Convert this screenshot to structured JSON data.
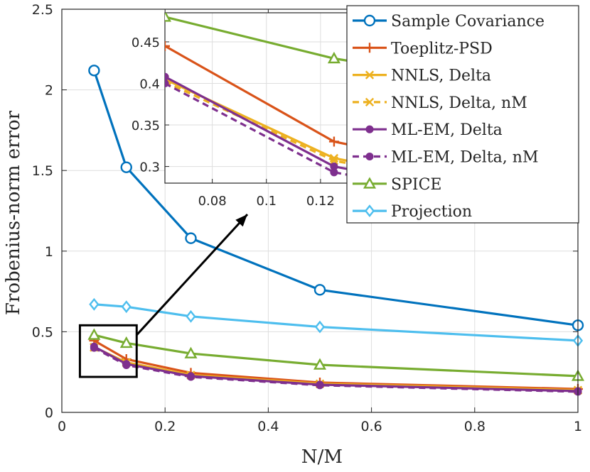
{
  "chart_data": {
    "type": "line",
    "xlabel": "N/M",
    "ylabel": "Frobenius-norm error",
    "xlim": [
      0,
      1
    ],
    "ylim": [
      0,
      2.5
    ],
    "xticks": [
      0,
      0.2,
      0.4,
      0.6,
      0.8,
      1
    ],
    "xtick_labels": [
      "0",
      "0.2",
      "0.4",
      "0.6",
      "0.8",
      "1"
    ],
    "yticks": [
      0,
      0.5,
      1,
      1.5,
      2,
      2.5
    ],
    "ytick_labels": [
      "0",
      "0.5",
      "1",
      "1.5",
      "2",
      "2.5"
    ],
    "grid": true,
    "legend_position": "top-right",
    "x": [
      0.0625,
      0.125,
      0.25,
      0.5,
      1
    ],
    "series": [
      {
        "name": "Sample Covariance",
        "color": "#0072BD",
        "marker": "circle",
        "dash": "solid",
        "values": [
          2.12,
          1.52,
          1.08,
          0.76,
          0.54
        ]
      },
      {
        "name": "Toeplitz-PSD",
        "color": "#D95319",
        "marker": "plus",
        "dash": "solid",
        "values": [
          0.445,
          0.33,
          0.245,
          0.185,
          0.145
        ]
      },
      {
        "name": "NNLS, Delta",
        "color": "#EDB120",
        "marker": "x",
        "dash": "solid",
        "values": [
          0.405,
          0.31,
          0.232,
          0.178,
          0.138
        ]
      },
      {
        "name": "NNLS, Delta, nM",
        "color": "#EDB120",
        "marker": "x",
        "dash": "dashed",
        "values": [
          0.402,
          0.307,
          0.23,
          0.176,
          0.137
        ]
      },
      {
        "name": "ML-EM, Delta",
        "color": "#7E2F8E",
        "marker": "dot",
        "dash": "solid",
        "values": [
          0.408,
          0.3,
          0.225,
          0.172,
          0.132
        ]
      },
      {
        "name": "ML-EM, Delta, nM",
        "color": "#7E2F8E",
        "marker": "dot",
        "dash": "dashed",
        "values": [
          0.4,
          0.293,
          0.22,
          0.168,
          0.128
        ]
      },
      {
        "name": "SPICE",
        "color": "#77AC30",
        "marker": "triangle",
        "dash": "solid",
        "values": [
          0.48,
          0.43,
          0.365,
          0.295,
          0.225
        ]
      },
      {
        "name": "Projection",
        "color": "#4DBEEE",
        "marker": "diamond",
        "dash": "solid",
        "values": [
          0.67,
          0.655,
          0.595,
          0.53,
          0.445
        ]
      }
    ],
    "inset": {
      "xlim": [
        0.0625,
        0.135
      ],
      "ylim": [
        0.28,
        0.485
      ],
      "xticks": [
        0.08,
        0.1,
        0.12
      ],
      "xtick_labels": [
        "0.08",
        "0.1",
        "0.12"
      ],
      "yticks": [
        0.3,
        0.35,
        0.4,
        0.45
      ],
      "ytick_labels": [
        "0.3",
        "0.35",
        "0.4",
        "0.45"
      ],
      "zoom_box": {
        "x": [
          0.035,
          0.145
        ],
        "y": [
          0.22,
          0.54
        ]
      }
    }
  }
}
